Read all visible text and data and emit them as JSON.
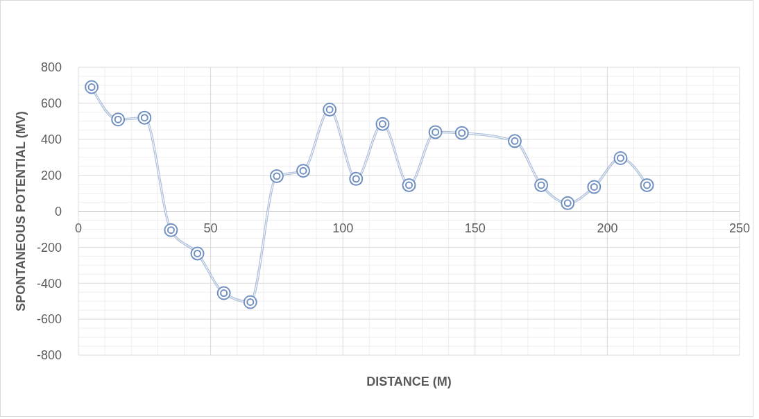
{
  "chart_data": {
    "type": "line",
    "xlabel": "DISTANCE (M)",
    "ylabel": "SPONTANEOUS POTENTIAL (MV)",
    "x": [
      5,
      15,
      25,
      35,
      45,
      55,
      65,
      75,
      85,
      95,
      105,
      115,
      125,
      135,
      145,
      165,
      175,
      185,
      195,
      205,
      215
    ],
    "series": [
      {
        "color": "#6f8fc0",
        "values": [
          690,
          510,
          520,
          -105,
          -235,
          -455,
          -505,
          195,
          225,
          565,
          180,
          485,
          145,
          440,
          435,
          390,
          145,
          45,
          135,
          295,
          145
        ]
      }
    ],
    "xlim": [
      0,
      250
    ],
    "xticks": [
      0,
      50,
      100,
      150,
      200,
      250
    ],
    "ylim": [
      -800,
      800
    ],
    "yticks": [
      -800,
      -600,
      -400,
      -200,
      0,
      200,
      400,
      600,
      800
    ],
    "grid": true,
    "marker": "circle",
    "line_style": "solid"
  }
}
